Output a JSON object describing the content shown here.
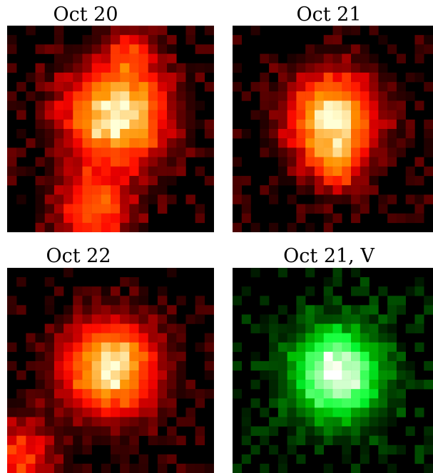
{
  "panels": [
    {
      "title": "Oct 20",
      "palette": "red",
      "seed": 11,
      "blobs": [
        [
          0.53,
          0.43,
          0.2,
          1.0
        ],
        [
          0.42,
          0.88,
          0.15,
          0.55
        ],
        [
          0.6,
          0.12,
          0.1,
          0.35
        ]
      ],
      "noise": 0.35
    },
    {
      "title": "Oct 21",
      "palette": "red",
      "seed": 23,
      "blobs": [
        [
          0.5,
          0.45,
          0.18,
          1.0
        ],
        [
          0.52,
          0.68,
          0.1,
          0.45
        ]
      ],
      "noise": 0.32
    },
    {
      "title": "Oct 22",
      "palette": "red",
      "seed": 37,
      "blobs": [
        [
          0.5,
          0.49,
          0.19,
          0.95
        ],
        [
          0.05,
          0.92,
          0.15,
          0.45
        ]
      ],
      "noise": 0.3
    },
    {
      "title": "Oct 21, V",
      "palette": "green",
      "seed": 53,
      "blobs": [
        [
          0.52,
          0.52,
          0.18,
          0.92
        ]
      ],
      "noise": 0.33
    }
  ]
}
